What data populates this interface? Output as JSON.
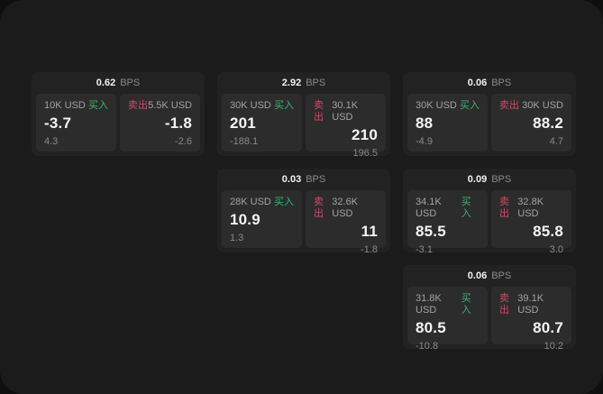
{
  "labels": {
    "bps": "BPS",
    "buy": "买入",
    "sell": "卖出"
  },
  "colors": {
    "backdrop": "#0f0f0f",
    "surface": "#1b1b1b",
    "card_bg": "#222222",
    "panel_bg": "#2c2c2c",
    "buy_green": "#3cb377",
    "sell_red": "#cf4a66",
    "text_primary": "#f2f2f2",
    "text_muted": "#8a8a8a"
  },
  "cards": [
    {
      "bps": "0.62",
      "buy": {
        "notional": "10K USD",
        "price": "-3.7",
        "sub": "4.3"
      },
      "sell": {
        "notional": "5.5K USD",
        "price": "-1.8",
        "sub": "-2.6"
      }
    },
    {
      "bps": "2.92",
      "buy": {
        "notional": "30K USD",
        "price": "201",
        "sub": "-188.1"
      },
      "sell": {
        "notional": "30.1K USD",
        "price": "210",
        "sub": "196.5"
      }
    },
    {
      "bps": "0.06",
      "buy": {
        "notional": "30K USD",
        "price": "88",
        "sub": "-4.9"
      },
      "sell": {
        "notional": "30K USD",
        "price": "88.2",
        "sub": "4.7"
      }
    },
    {
      "bps": "0.03",
      "buy": {
        "notional": "28K USD",
        "price": "10.9",
        "sub": "1.3"
      },
      "sell": {
        "notional": "32.6K USD",
        "price": "11",
        "sub": "-1.8"
      }
    },
    {
      "bps": "0.09",
      "buy": {
        "notional": "34.1K USD",
        "price": "85.5",
        "sub": "-3.1"
      },
      "sell": {
        "notional": "32.8K USD",
        "price": "85.8",
        "sub": "3.0"
      }
    },
    {
      "bps": "0.06",
      "buy": {
        "notional": "31.8K USD",
        "price": "80.5",
        "sub": "-10.8"
      },
      "sell": {
        "notional": "39.1K USD",
        "price": "80.7",
        "sub": "10.2"
      }
    }
  ]
}
